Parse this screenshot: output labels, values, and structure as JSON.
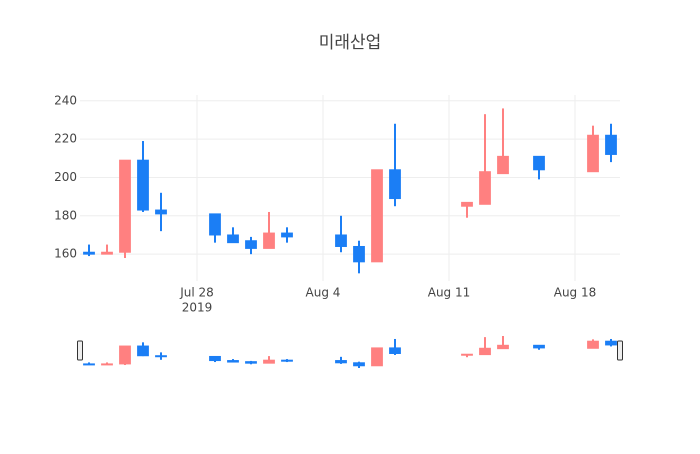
{
  "chart_data": {
    "type": "candlestick",
    "title": "미래산업",
    "x": [
      "2019-07-22",
      "2019-07-23",
      "2019-07-24",
      "2019-07-25",
      "2019-07-26",
      "2019-07-29",
      "2019-07-30",
      "2019-07-31",
      "2019-08-01",
      "2019-08-02",
      "2019-08-05",
      "2019-08-06",
      "2019-08-07",
      "2019-08-08",
      "2019-08-12",
      "2019-08-13",
      "2019-08-14",
      "2019-08-16",
      "2019-08-19",
      "2019-08-20"
    ],
    "open": [
      161,
      160,
      161,
      209,
      183,
      181,
      170,
      167,
      163,
      171,
      170,
      164,
      156,
      204,
      185,
      186,
      202,
      211,
      203,
      222
    ],
    "high": [
      165,
      165,
      209,
      219,
      192,
      181,
      174,
      169,
      182,
      174,
      180,
      167,
      204,
      228,
      187,
      233,
      236,
      211,
      227,
      228
    ],
    "low": [
      159,
      160,
      158,
      182,
      172,
      166,
      166,
      160,
      163,
      166,
      161,
      150,
      156,
      185,
      179,
      186,
      202,
      199,
      203,
      208
    ],
    "close": [
      160,
      161,
      209,
      183,
      181,
      170,
      166,
      163,
      171,
      169,
      164,
      156,
      204,
      189,
      187,
      203,
      211,
      204,
      222,
      212
    ],
    "increasing_color": "#ff8080",
    "decreasing_color": "#1b7ef5",
    "xlim": [
      "2019-07-21T12:00",
      "2019-08-20T12:00"
    ],
    "xticks": [
      {
        "value": "2019-07-28",
        "label": "Jul 28"
      },
      {
        "value": "2019-08-04",
        "label": "Aug 4"
      },
      {
        "value": "2019-08-11",
        "label": "Aug 11"
      },
      {
        "value": "2019-08-18",
        "label": "Aug 18"
      }
    ],
    "x_year_label": "2019",
    "ylim": [
      146,
      243
    ],
    "yticks": [
      160,
      180,
      200,
      220,
      240
    ],
    "grid": true,
    "rangeslider": true
  }
}
